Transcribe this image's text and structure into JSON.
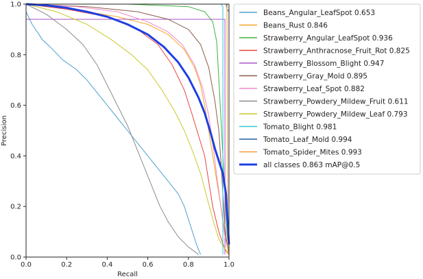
{
  "chart_data": {
    "type": "line",
    "title": "",
    "xlabel": "Recall",
    "ylabel": "Precision",
    "xlim": [
      0,
      1
    ],
    "ylim": [
      0,
      1
    ],
    "grid": false,
    "legend_position": "outside-right-top",
    "x_ticks": [
      "0.0",
      "0.2",
      "0.4",
      "0.6",
      "0.8",
      "1.0"
    ],
    "y_ticks": [
      "0.0",
      "0.2",
      "0.4",
      "0.6",
      "0.8",
      "1.0"
    ],
    "series": [
      {
        "name": "Beans_Angular_LeafSpot 0.653",
        "color": "#4a9fd0",
        "width": 1,
        "points": [
          [
            0,
            0.97
          ],
          [
            0.03,
            0.92
          ],
          [
            0.08,
            0.86
          ],
          [
            0.12,
            0.83
          ],
          [
            0.18,
            0.78
          ],
          [
            0.25,
            0.74
          ],
          [
            0.3,
            0.7
          ],
          [
            0.35,
            0.65
          ],
          [
            0.4,
            0.6
          ],
          [
            0.45,
            0.55
          ],
          [
            0.5,
            0.5
          ],
          [
            0.55,
            0.45
          ],
          [
            0.6,
            0.4
          ],
          [
            0.65,
            0.35
          ],
          [
            0.7,
            0.3
          ],
          [
            0.75,
            0.25
          ],
          [
            0.78,
            0.2
          ],
          [
            0.8,
            0.15
          ],
          [
            0.82,
            0.1
          ],
          [
            0.84,
            0.05
          ],
          [
            0.86,
            0.01
          ]
        ]
      },
      {
        "name": "Beans_Rust 0.846",
        "color": "#f5a623",
        "width": 1,
        "points": [
          [
            0,
            1
          ],
          [
            0.15,
            0.99
          ],
          [
            0.3,
            0.97
          ],
          [
            0.45,
            0.95
          ],
          [
            0.6,
            0.92
          ],
          [
            0.7,
            0.88
          ],
          [
            0.78,
            0.82
          ],
          [
            0.83,
            0.75
          ],
          [
            0.86,
            0.68
          ],
          [
            0.88,
            0.6
          ],
          [
            0.9,
            0.5
          ],
          [
            0.92,
            0.4
          ],
          [
            0.94,
            0.3
          ],
          [
            0.96,
            0.2
          ],
          [
            0.98,
            0.1
          ],
          [
            1,
            0.01
          ]
        ]
      },
      {
        "name": "Strawberry_Angular_LeafSpot 0.936",
        "color": "#3db33d",
        "width": 1,
        "points": [
          [
            0,
            1
          ],
          [
            0.5,
            1
          ],
          [
            0.8,
            0.99
          ],
          [
            0.88,
            0.97
          ],
          [
            0.92,
            0.93
          ],
          [
            0.94,
            0.85
          ],
          [
            0.95,
            0.7
          ],
          [
            0.96,
            0.55
          ],
          [
            0.97,
            0.4
          ],
          [
            0.98,
            0.25
          ],
          [
            0.99,
            0.1
          ],
          [
            1,
            0.01
          ]
        ]
      },
      {
        "name": "Strawberry_Anthracnose_Fruit_Rot 0.825",
        "color": "#e8413c",
        "width": 1,
        "points": [
          [
            0,
            1
          ],
          [
            0.2,
            0.98
          ],
          [
            0.4,
            0.95
          ],
          [
            0.55,
            0.9
          ],
          [
            0.65,
            0.84
          ],
          [
            0.72,
            0.76
          ],
          [
            0.78,
            0.66
          ],
          [
            0.82,
            0.56
          ],
          [
            0.85,
            0.48
          ],
          [
            0.88,
            0.4
          ],
          [
            0.9,
            0.3
          ],
          [
            0.92,
            0.2
          ],
          [
            0.95,
            0.1
          ],
          [
            0.98,
            0.03
          ],
          [
            1,
            0.01
          ]
        ]
      },
      {
        "name": "Strawberry_Blossom_Blight 0.947",
        "color": "#a855c6",
        "width": 1,
        "points": [
          [
            0,
            0.94
          ],
          [
            0.98,
            0.94
          ],
          [
            0.98,
            0.01
          ]
        ]
      },
      {
        "name": "Strawberry_Gray_Mold 0.895",
        "color": "#8b5a4a",
        "width": 1,
        "points": [
          [
            0,
            1
          ],
          [
            0.3,
            0.99
          ],
          [
            0.55,
            0.97
          ],
          [
            0.7,
            0.94
          ],
          [
            0.8,
            0.9
          ],
          [
            0.86,
            0.84
          ],
          [
            0.9,
            0.75
          ],
          [
            0.93,
            0.62
          ],
          [
            0.95,
            0.5
          ],
          [
            0.96,
            0.38
          ],
          [
            0.97,
            0.25
          ],
          [
            0.98,
            0.12
          ],
          [
            0.99,
            0.05
          ],
          [
            1,
            0.01
          ]
        ]
      },
      {
        "name": "Strawberry_Leaf_Spot 0.882",
        "color": "#f087c8",
        "width": 1,
        "points": [
          [
            0,
            1
          ],
          [
            0.25,
            0.99
          ],
          [
            0.45,
            0.97
          ],
          [
            0.6,
            0.93
          ],
          [
            0.7,
            0.89
          ],
          [
            0.77,
            0.84
          ],
          [
            0.83,
            0.76
          ],
          [
            0.87,
            0.67
          ],
          [
            0.9,
            0.56
          ],
          [
            0.92,
            0.45
          ],
          [
            0.94,
            0.32
          ],
          [
            0.96,
            0.2
          ],
          [
            0.98,
            0.08
          ],
          [
            1,
            0.01
          ]
        ]
      },
      {
        "name": "Strawberry_Powdery_Mildew_Fruit 0.611",
        "color": "#8a8a8a",
        "width": 1,
        "points": [
          [
            0,
            1
          ],
          [
            0.1,
            0.96
          ],
          [
            0.2,
            0.9
          ],
          [
            0.28,
            0.84
          ],
          [
            0.35,
            0.76
          ],
          [
            0.4,
            0.68
          ],
          [
            0.45,
            0.6
          ],
          [
            0.5,
            0.52
          ],
          [
            0.54,
            0.44
          ],
          [
            0.58,
            0.36
          ],
          [
            0.62,
            0.28
          ],
          [
            0.66,
            0.2
          ],
          [
            0.7,
            0.14
          ],
          [
            0.75,
            0.08
          ],
          [
            0.8,
            0.04
          ],
          [
            0.85,
            0.01
          ]
        ]
      },
      {
        "name": "Strawberry_Powdery_Mildew_Leaf 0.793",
        "color": "#c9c927",
        "width": 1,
        "points": [
          [
            0,
            1
          ],
          [
            0.15,
            0.97
          ],
          [
            0.3,
            0.92
          ],
          [
            0.42,
            0.86
          ],
          [
            0.52,
            0.8
          ],
          [
            0.6,
            0.74
          ],
          [
            0.67,
            0.66
          ],
          [
            0.73,
            0.58
          ],
          [
            0.78,
            0.5
          ],
          [
            0.82,
            0.42
          ],
          [
            0.86,
            0.33
          ],
          [
            0.89,
            0.24
          ],
          [
            0.92,
            0.15
          ],
          [
            0.95,
            0.07
          ],
          [
            1,
            0.01
          ]
        ]
      },
      {
        "name": "Tomato_Blight 0.981",
        "color": "#30c8d8",
        "width": 1,
        "points": [
          [
            0,
            1
          ],
          [
            0.96,
            1
          ],
          [
            0.97,
            0.99
          ],
          [
            0.97,
            0.01
          ]
        ]
      },
      {
        "name": "Tomato_Leaf_Mold 0.994",
        "color": "#1f5fa0",
        "width": 1,
        "points": [
          [
            0,
            1
          ],
          [
            0.99,
            1
          ],
          [
            0.99,
            0.98
          ],
          [
            1,
            0.97
          ],
          [
            1,
            0.01
          ]
        ]
      },
      {
        "name": "Tomato_Spider_Mites 0.993",
        "color": "#f59a3a",
        "width": 1,
        "points": [
          [
            0,
            1
          ],
          [
            0.985,
            1
          ],
          [
            0.99,
            0.98
          ],
          [
            0.995,
            0.01
          ]
        ]
      },
      {
        "name": "all classes 0.863 mAP@0.5",
        "color": "#1f3fe0",
        "width": 3,
        "points": [
          [
            0,
            1
          ],
          [
            0.1,
            0.995
          ],
          [
            0.2,
            0.985
          ],
          [
            0.3,
            0.97
          ],
          [
            0.4,
            0.95
          ],
          [
            0.5,
            0.92
          ],
          [
            0.6,
            0.88
          ],
          [
            0.68,
            0.83
          ],
          [
            0.75,
            0.77
          ],
          [
            0.8,
            0.71
          ],
          [
            0.85,
            0.63
          ],
          [
            0.88,
            0.57
          ],
          [
            0.91,
            0.49
          ],
          [
            0.93,
            0.43
          ],
          [
            0.95,
            0.38
          ],
          [
            0.97,
            0.33
          ],
          [
            0.985,
            0.25
          ],
          [
            0.995,
            0.12
          ],
          [
            1,
            0.05
          ]
        ]
      }
    ]
  }
}
